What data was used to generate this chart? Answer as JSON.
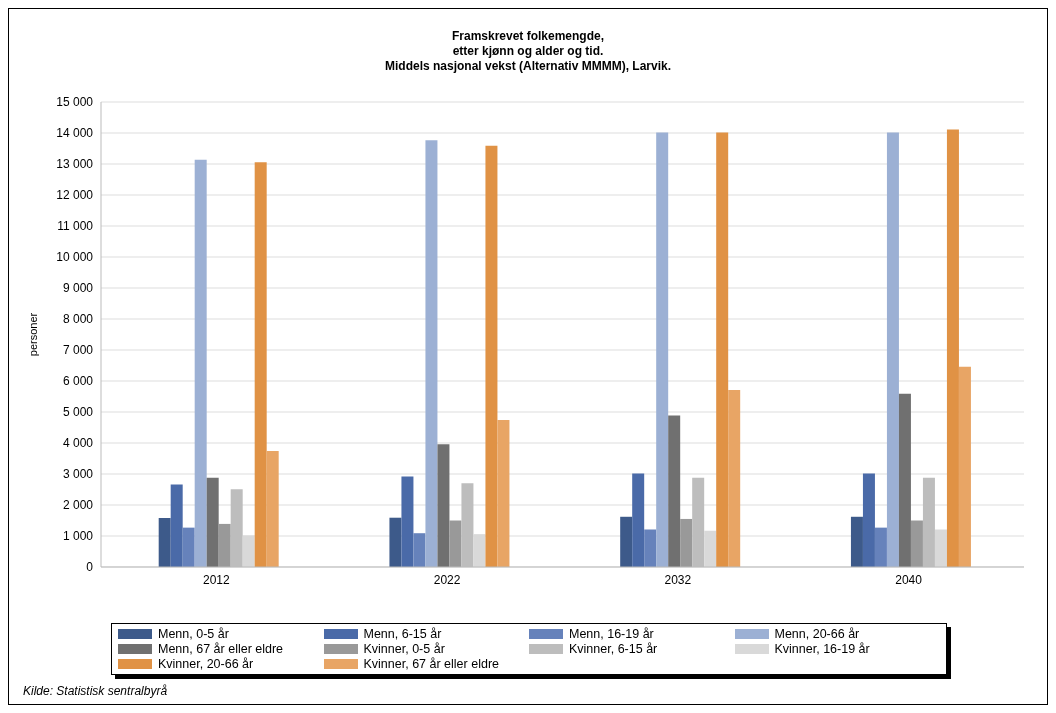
{
  "chart_data": {
    "type": "bar",
    "title": "Framskrevet folkemengde,\netter kjønn og alder og tid.\nMiddels nasjonal vekst (Alternativ MMMM), Larvik.",
    "ylabel": "personer",
    "categories": [
      "2012",
      "2022",
      "2032",
      "2040"
    ],
    "series": [
      {
        "name": "Menn, 0-5 år",
        "color": "#3d5a8a",
        "values": [
          1580,
          1590,
          1620,
          1620
        ]
      },
      {
        "name": "Menn, 6-15 år",
        "color": "#4a6aa8",
        "values": [
          2660,
          2920,
          3020,
          3020
        ]
      },
      {
        "name": "Menn, 16-19 år",
        "color": "#6682bb",
        "values": [
          1270,
          1090,
          1210,
          1270
        ]
      },
      {
        "name": "Menn, 20-66 år",
        "color": "#9cb0d4",
        "values": [
          13140,
          13770,
          14020,
          14020
        ]
      },
      {
        "name": "Menn, 67 år eller eldre",
        "color": "#707070",
        "values": [
          2880,
          3960,
          4890,
          5590
        ]
      },
      {
        "name": "Kvinner, 0-5 år",
        "color": "#999999",
        "values": [
          1390,
          1500,
          1550,
          1500
        ]
      },
      {
        "name": "Kvinner, 6-15 år",
        "color": "#bdbdbd",
        "values": [
          2510,
          2700,
          2880,
          2880
        ]
      },
      {
        "name": "Kvinner, 16-19 år",
        "color": "#d9d9d9",
        "values": [
          1020,
          1060,
          1170,
          1210
        ]
      },
      {
        "name": "Kvinner, 20-66 år",
        "color": "#e09245",
        "values": [
          13060,
          13590,
          14020,
          14110
        ]
      },
      {
        "name": "Kvinner, 67 år eller eldre",
        "color": "#e8a565",
        "values": [
          3740,
          4740,
          5710,
          6460
        ]
      }
    ],
    "ylim": [
      0,
      15000
    ],
    "yticks": [
      0,
      {
        "value": 1000,
        "label": "1 000"
      },
      {
        "value": 2000,
        "label": "2 000"
      },
      {
        "value": 3000,
        "label": "3 000"
      },
      {
        "value": 4000,
        "label": "4 000"
      },
      {
        "value": 5000,
        "label": "5 000"
      },
      {
        "value": 6000,
        "label": "6 000"
      },
      {
        "value": 7000,
        "label": "7 000"
      },
      {
        "value": 8000,
        "label": "8 000"
      },
      {
        "value": 9000,
        "label": "9 000"
      },
      {
        "value": 10000,
        "label": "10 000"
      },
      {
        "value": 11000,
        "label": "11 000"
      },
      {
        "value": 12000,
        "label": "12 000"
      },
      {
        "value": 13000,
        "label": "13 000"
      },
      {
        "value": 14000,
        "label": "14 000"
      },
      {
        "value": 15000,
        "label": "15 000"
      }
    ],
    "grid": "y",
    "legend": "bottom",
    "annotations": [
      "Kilde: Statistisk sentralbyrå"
    ]
  }
}
